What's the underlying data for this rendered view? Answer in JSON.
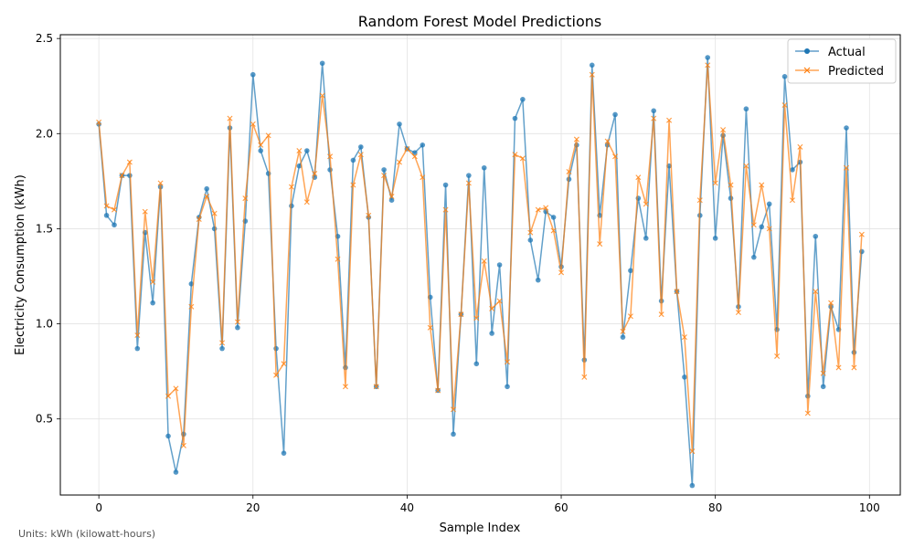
{
  "chart_data": {
    "type": "line",
    "title": "Random Forest Model Predictions",
    "xlabel": "Sample Index",
    "ylabel": "Electricity Consumption (kWh)",
    "xlim": [
      -5,
      104
    ],
    "ylim": [
      0.1,
      2.52
    ],
    "xticks": [
      0,
      20,
      40,
      60,
      80,
      100
    ],
    "yticks": [
      0.5,
      1.0,
      1.5,
      2.0,
      2.5
    ],
    "ytick_labels": [
      "0.5",
      "1.0",
      "1.5",
      "2.0",
      "2.5"
    ],
    "grid": true,
    "legend": "top-right",
    "series": [
      {
        "name": "Actual",
        "color": "#1f77b4",
        "marker": "circle",
        "values": [
          2.05,
          1.57,
          1.52,
          1.78,
          1.78,
          0.87,
          1.48,
          1.11,
          1.72,
          0.41,
          0.22,
          0.42,
          1.21,
          1.56,
          1.71,
          1.5,
          0.87,
          2.03,
          0.98,
          1.54,
          2.31,
          1.91,
          1.79,
          0.87,
          0.32,
          1.62,
          1.83,
          1.91,
          1.77,
          2.37,
          1.81,
          1.46,
          0.77,
          1.86,
          1.93,
          1.56,
          0.67,
          1.81,
          1.65,
          2.05,
          1.92,
          1.9,
          1.94,
          1.14,
          0.65,
          1.73,
          0.42,
          1.05,
          1.78,
          0.79,
          1.82,
          0.95,
          1.31,
          0.67,
          2.08,
          2.18,
          1.44,
          1.23,
          1.59,
          1.56,
          1.3,
          1.76,
          1.94,
          0.81,
          2.36,
          1.57,
          1.94,
          2.1,
          0.93,
          1.28,
          1.66,
          1.45,
          2.12,
          1.12,
          1.83,
          1.17,
          0.72,
          0.15,
          1.57,
          2.4,
          1.45,
          1.99,
          1.66,
          1.09,
          2.13,
          1.35,
          1.51,
          1.63,
          0.97,
          2.3,
          1.81,
          1.85,
          0.62,
          1.46,
          0.67,
          1.09,
          0.97,
          2.03,
          0.85,
          1.38
        ]
      },
      {
        "name": "Predicted",
        "color": "#ff7f0e",
        "marker": "x",
        "values": [
          2.06,
          1.62,
          1.6,
          1.78,
          1.85,
          0.94,
          1.59,
          1.22,
          1.74,
          0.62,
          0.66,
          0.36,
          1.09,
          1.55,
          1.67,
          1.58,
          0.9,
          2.08,
          1.01,
          1.66,
          2.05,
          1.94,
          1.99,
          0.73,
          0.79,
          1.72,
          1.91,
          1.64,
          1.79,
          2.2,
          1.88,
          1.34,
          0.67,
          1.73,
          1.89,
          1.57,
          0.67,
          1.78,
          1.67,
          1.85,
          1.92,
          1.88,
          1.77,
          0.98,
          0.65,
          1.6,
          0.55,
          1.05,
          1.74,
          1.03,
          1.33,
          1.08,
          1.12,
          0.8,
          1.89,
          1.87,
          1.48,
          1.6,
          1.61,
          1.49,
          1.27,
          1.8,
          1.97,
          0.72,
          2.31,
          1.42,
          1.96,
          1.88,
          0.96,
          1.04,
          1.77,
          1.63,
          2.08,
          1.05,
          2.07,
          1.17,
          0.93,
          0.33,
          1.65,
          2.36,
          1.74,
          2.02,
          1.73,
          1.06,
          1.83,
          1.52,
          1.73,
          1.5,
          0.83,
          2.15,
          1.65,
          1.93,
          0.53,
          1.17,
          0.74,
          1.11,
          0.77,
          1.82,
          0.77,
          1.47
        ]
      }
    ],
    "footnote": "Units: kWh (kilowatt-hours)"
  }
}
